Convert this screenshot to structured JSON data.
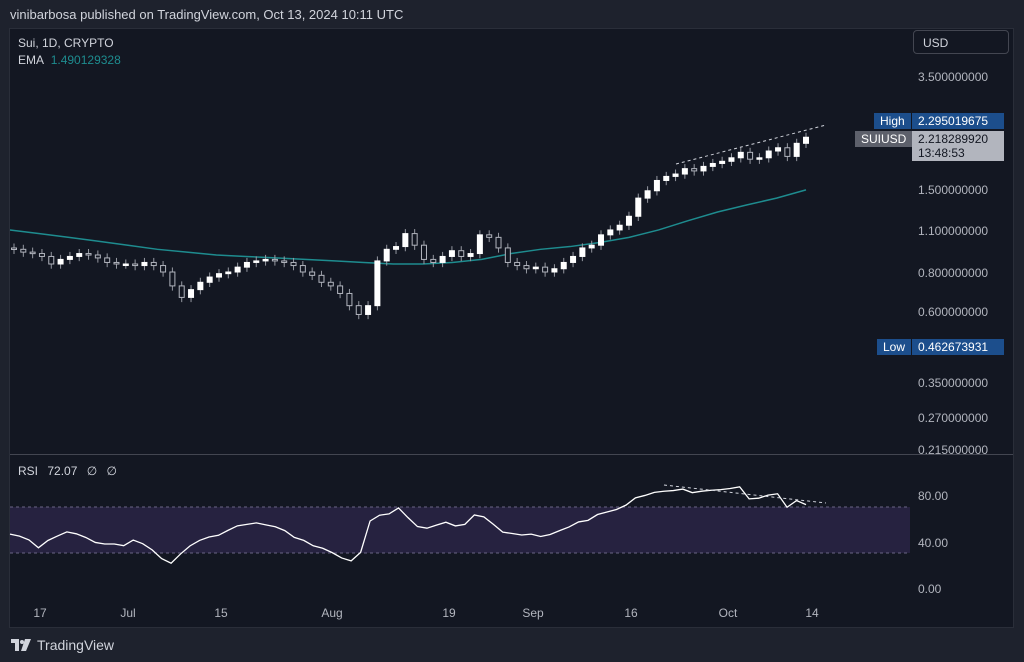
{
  "header": {
    "publisher_text": "vinibarbosa published on TradingView.com, Oct 13, 2024 10:11 UTC"
  },
  "chart": {
    "symbol_line": "Sui, 1D, CRYPTO",
    "ema_label": "EMA",
    "ema_value": "1.490129328",
    "currency_button": "USD",
    "high_label": "High",
    "high_value": "2.295019675",
    "symbol_tag": "SUIUSD",
    "last_price": "2.218289920",
    "countdown": "13:48:53",
    "low_label": "Low",
    "low_value": "0.462673931",
    "price_ticks": [
      "3.500000000",
      "1.500000000",
      "1.100000000",
      "0.800000000",
      "0.600000000",
      "0.350000000",
      "0.270000000",
      "0.215000000"
    ],
    "rsi_label": "RSI",
    "rsi_value": "72.07",
    "rsi_extra_1": "∅",
    "rsi_extra_2": "∅",
    "rsi_ticks": [
      "80.00",
      "40.00",
      "0.00"
    ],
    "time_ticks": [
      "17",
      "Jul",
      "15",
      "Aug",
      "19",
      "Sep",
      "16",
      "Oct",
      "14"
    ],
    "colors": {
      "background": "#131722",
      "candle_up": "#ffffff",
      "candle_down": "#555a66",
      "ema_line": "#1e8c8f",
      "rsi_line": "#ffffff",
      "rsi_band": "#2a2545",
      "high_tag": "#1c4e8c",
      "low_tag": "#1c4e8c",
      "last_price_tag": "#b2b5be"
    }
  },
  "chart_data": {
    "type": "candlestick",
    "series": [
      {
        "name": "SUIUSD",
        "approx_close": [
          0.95,
          0.93,
          0.92,
          0.9,
          0.85,
          0.88,
          0.9,
          0.92,
          0.91,
          0.89,
          0.86,
          0.85,
          0.85,
          0.84,
          0.86,
          0.84,
          0.8,
          0.72,
          0.66,
          0.7,
          0.74,
          0.77,
          0.79,
          0.8,
          0.83,
          0.86,
          0.87,
          0.88,
          0.87,
          0.86,
          0.84,
          0.8,
          0.78,
          0.74,
          0.72,
          0.68,
          0.62,
          0.58,
          0.62,
          0.87,
          0.95,
          0.97,
          1.07,
          0.98,
          0.88,
          0.86,
          0.9,
          0.94,
          0.9,
          0.92,
          1.06,
          1.04,
          0.96,
          0.86,
          0.84,
          0.82,
          0.83,
          0.8,
          0.82,
          0.86,
          0.9,
          0.96,
          0.98,
          1.06,
          1.1,
          1.14,
          1.22,
          1.4,
          1.48,
          1.6,
          1.65,
          1.68,
          1.75,
          1.72,
          1.78,
          1.82,
          1.85,
          1.9,
          1.98,
          1.88,
          1.9,
          2.0,
          2.05,
          1.92,
          2.12,
          2.22
        ]
      },
      {
        "name": "EMA",
        "approx_value": [
          1.1,
          1.07,
          1.04,
          1.01,
          0.98,
          0.95,
          0.93,
          0.91,
          0.9,
          0.89,
          0.88,
          0.87,
          0.86,
          0.85,
          0.85,
          0.86,
          0.88,
          0.92,
          0.95,
          0.97,
          1.0,
          1.04,
          1.1,
          1.18,
          1.26,
          1.33,
          1.4,
          1.49
        ]
      },
      {
        "name": "RSI",
        "last_value": 72.07,
        "overbought": 70,
        "oversold": 30
      }
    ]
  }
}
